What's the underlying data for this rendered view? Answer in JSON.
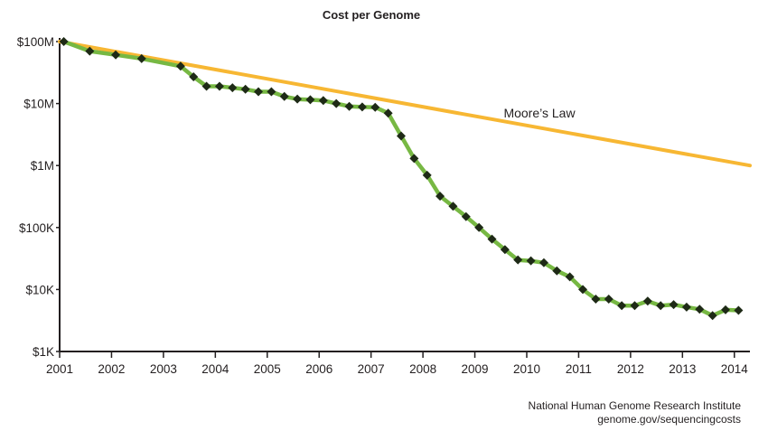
{
  "chart_data": {
    "type": "line",
    "title": "Cost per Genome",
    "xlabel": "",
    "ylabel": "",
    "y_scale": "log",
    "xlim": [
      2001,
      2014.3
    ],
    "ylim": [
      1000,
      100000000
    ],
    "x_ticks": [
      2001,
      2002,
      2003,
      2004,
      2005,
      2006,
      2007,
      2008,
      2009,
      2010,
      2011,
      2012,
      2013,
      2014
    ],
    "x_tick_labels": [
      "2001",
      "2002",
      "2003",
      "2004",
      "2005",
      "2006",
      "2007",
      "2008",
      "2009",
      "2010",
      "2011",
      "2012",
      "2013",
      "2014"
    ],
    "y_ticks": [
      1000,
      10000,
      100000,
      1000000,
      10000000,
      100000000
    ],
    "y_tick_labels": [
      "$1K",
      "$10K",
      "$100K",
      "$1M",
      "$10M",
      "$100M"
    ],
    "grid": false,
    "annotations": [
      {
        "text": "Moore’s Law",
        "x": 2009.7,
        "y": 5000000
      }
    ],
    "source_lines": [
      "National Human Genome Research Institute",
      "genome.gov/sequencingcosts"
    ],
    "colors": {
      "cost": "#77b843",
      "marker": "#1e2a16",
      "moore": "#f7b733",
      "axis": "#231f20"
    },
    "series": [
      {
        "label": "Cost per Genome",
        "color": "#77b843",
        "marker": "diamond",
        "x": [
          2001.08,
          2001.58,
          2002.08,
          2002.58,
          2003.33,
          2003.58,
          2003.83,
          2004.08,
          2004.33,
          2004.58,
          2004.83,
          2005.08,
          2005.33,
          2005.58,
          2005.83,
          2006.08,
          2006.33,
          2006.58,
          2006.83,
          2007.08,
          2007.33,
          2007.58,
          2007.83,
          2008.08,
          2008.33,
          2008.58,
          2008.83,
          2009.08,
          2009.33,
          2009.58,
          2009.83,
          2010.08,
          2010.33,
          2010.58,
          2010.83,
          2011.08,
          2011.33,
          2011.58,
          2011.83,
          2012.08,
          2012.33,
          2012.58,
          2012.83,
          2013.08,
          2013.33,
          2013.58,
          2013.83,
          2014.08
        ],
        "values": [
          100000000,
          70000000,
          61000000,
          53000000,
          40000000,
          27000000,
          19000000,
          19000000,
          18000000,
          17000000,
          15500000,
          15500000,
          13000000,
          11800000,
          11500000,
          11200000,
          10000000,
          9000000,
          8800000,
          8700000,
          7000000,
          3000000,
          1300000,
          700000,
          320000,
          220000,
          150000,
          100000,
          65000,
          44000,
          30000,
          29000,
          27000,
          20000,
          16000,
          10000,
          7000,
          7000,
          5500,
          5500,
          6500,
          5500,
          5700,
          5200,
          4800,
          3800,
          4700,
          4600
        ]
      },
      {
        "label": "Moore’s Law",
        "color": "#f7b733",
        "marker": "none",
        "x": [
          2001.0,
          2014.3
        ],
        "values": [
          100000000,
          1000000
        ]
      }
    ]
  }
}
